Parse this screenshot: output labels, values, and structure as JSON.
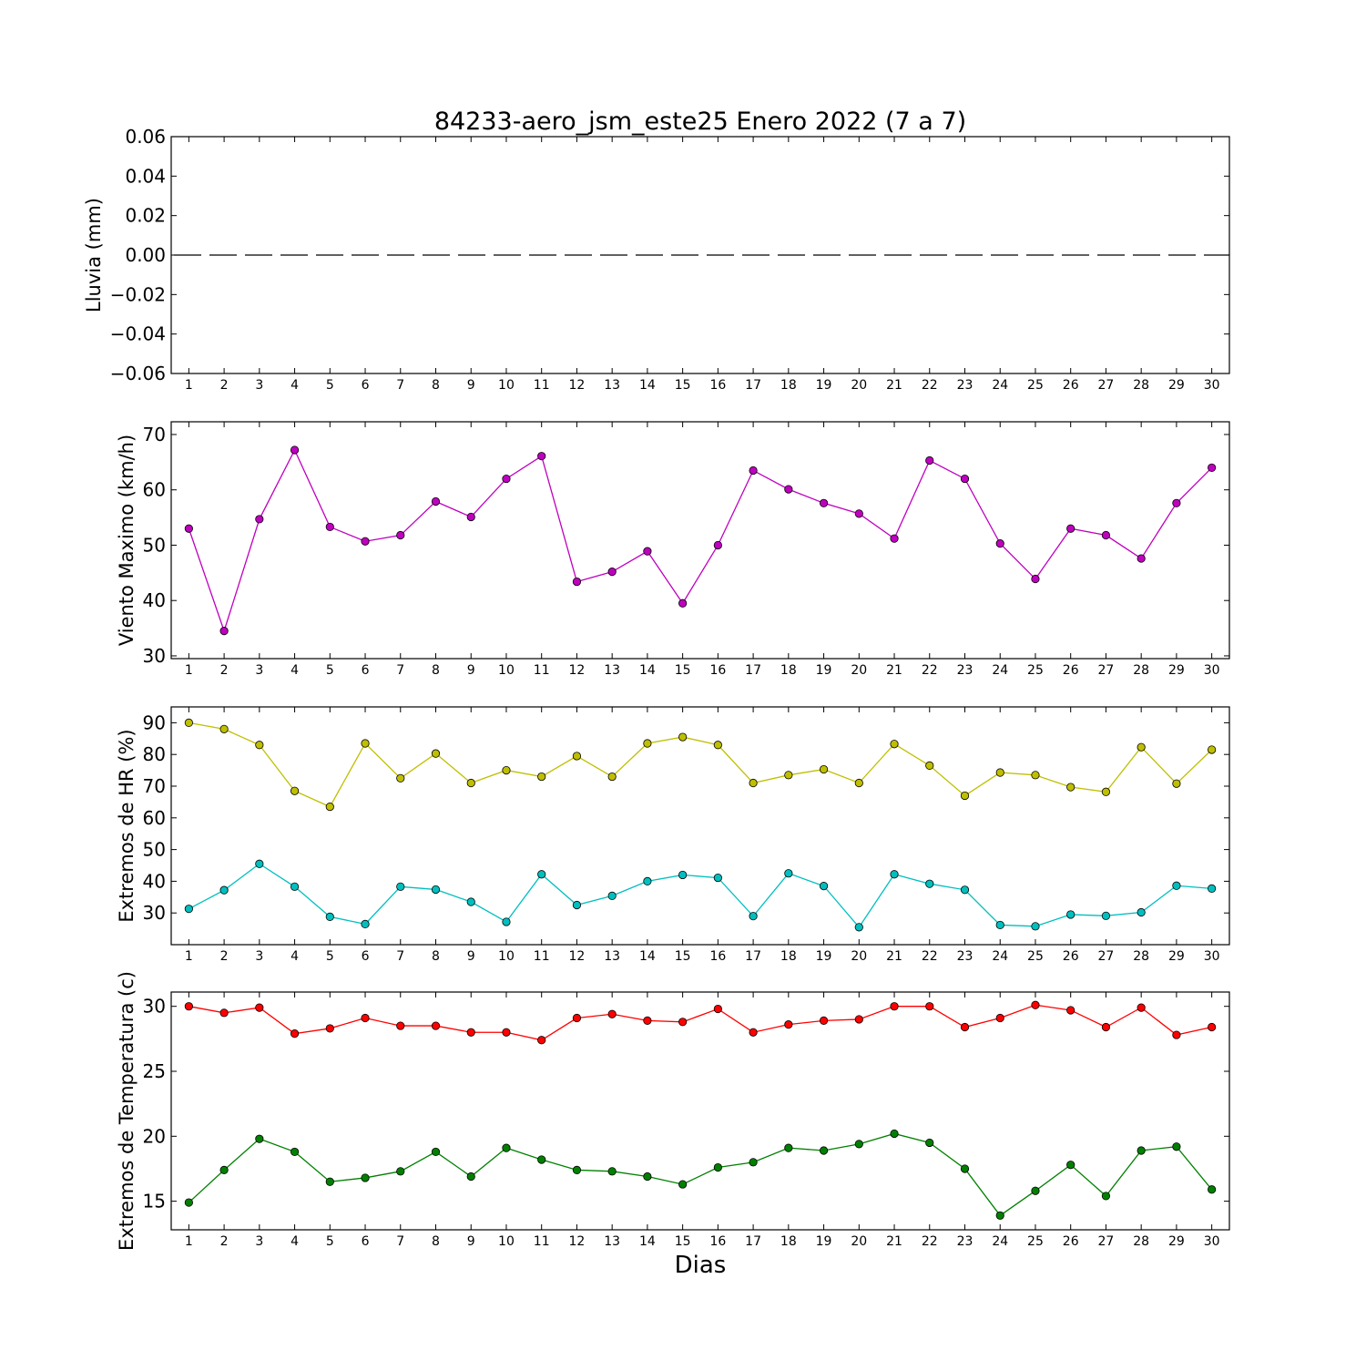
{
  "figure": {
    "title": "84233-aero_jsm_este25 Enero 2022  (7 a 7)",
    "xlabel": "Dias"
  },
  "chart_data": [
    {
      "type": "line",
      "ylabel": "Lluvia (mm)",
      "x": [
        1,
        2,
        3,
        4,
        5,
        6,
        7,
        8,
        9,
        10,
        11,
        12,
        13,
        14,
        15,
        16,
        17,
        18,
        19,
        20,
        21,
        22,
        23,
        24,
        25,
        26,
        27,
        28,
        29,
        30
      ],
      "xlim": [
        0.5,
        30.5
      ],
      "ylim": [
        -0.06,
        0.06
      ],
      "yticks": [
        0.06,
        0.04,
        0.02,
        0.0,
        -0.02,
        -0.04,
        -0.06
      ],
      "ytick_labels": [
        "0.06",
        "0.04",
        "0.02",
        "0.00",
        "−0.02",
        "−0.04",
        "−0.06"
      ],
      "series": [
        {
          "style": "dashed",
          "marker": false,
          "color": "#000000",
          "values": [
            0,
            0,
            0,
            0,
            0,
            0,
            0,
            0,
            0,
            0,
            0,
            0,
            0,
            0,
            0,
            0,
            0,
            0,
            0,
            0,
            0,
            0,
            0,
            0,
            0,
            0,
            0,
            0,
            0,
            0
          ]
        }
      ]
    },
    {
      "type": "line",
      "ylabel": "Viento Maximo (km/h)",
      "x": [
        1,
        2,
        3,
        4,
        5,
        6,
        7,
        8,
        9,
        10,
        11,
        12,
        13,
        14,
        15,
        16,
        17,
        18,
        19,
        20,
        21,
        22,
        23,
        24,
        25,
        26,
        27,
        28,
        29,
        30
      ],
      "xlim": [
        0.5,
        30.5
      ],
      "ylim": [
        29.5,
        72.3
      ],
      "yticks": [
        70,
        60,
        50,
        40,
        30
      ],
      "ytick_labels": [
        "70",
        "60",
        "50",
        "40",
        "30"
      ],
      "series": [
        {
          "style": "solid",
          "marker": true,
          "color": "#bf00bf",
          "values": [
            53.0,
            34.5,
            54.7,
            67.2,
            53.3,
            50.7,
            51.8,
            57.9,
            55.1,
            62.0,
            66.1,
            43.4,
            45.2,
            48.9,
            39.5,
            50.0,
            63.5,
            60.1,
            57.6,
            55.7,
            51.2,
            65.3,
            62.0,
            50.3,
            43.9,
            53.0,
            51.8,
            47.6,
            57.6,
            64.0
          ]
        }
      ]
    },
    {
      "type": "line",
      "ylabel": "Extremos de HR (%)",
      "x": [
        1,
        2,
        3,
        4,
        5,
        6,
        7,
        8,
        9,
        10,
        11,
        12,
        13,
        14,
        15,
        16,
        17,
        18,
        19,
        20,
        21,
        22,
        23,
        24,
        25,
        26,
        27,
        28,
        29,
        30
      ],
      "xlim": [
        0.5,
        30.5
      ],
      "ylim": [
        20,
        95
      ],
      "yticks": [
        90,
        80,
        70,
        60,
        50,
        40,
        30
      ],
      "ytick_labels": [
        "90",
        "80",
        "70",
        "60",
        "50",
        "40",
        "30"
      ],
      "series": [
        {
          "style": "solid",
          "marker": true,
          "color": "#bfbf00",
          "values": [
            90,
            88,
            83,
            68.5,
            63.5,
            83.5,
            72.5,
            80.3,
            71,
            75,
            73,
            79.5,
            73,
            83.5,
            85.5,
            83,
            71,
            73.5,
            75.3,
            71,
            83.3,
            76.5,
            67,
            74.3,
            73.5,
            69.7,
            68.2,
            82.3,
            70.8,
            81.5
          ]
        },
        {
          "style": "solid",
          "marker": true,
          "color": "#00bfbf",
          "values": [
            31.3,
            37.2,
            45.5,
            38.3,
            28.8,
            26.5,
            38.3,
            37.4,
            33.5,
            27.2,
            42.2,
            32.5,
            35.4,
            40,
            42,
            41.1,
            29,
            42.5,
            38.5,
            25.5,
            42.2,
            39.2,
            37.3,
            26.2,
            25.8,
            29.5,
            29.1,
            30.2,
            38.6,
            37.7
          ]
        }
      ]
    },
    {
      "type": "line",
      "ylabel": "Extremos de Temperatura (c)",
      "x": [
        1,
        2,
        3,
        4,
        5,
        6,
        7,
        8,
        9,
        10,
        11,
        12,
        13,
        14,
        15,
        16,
        17,
        18,
        19,
        20,
        21,
        22,
        23,
        24,
        25,
        26,
        27,
        28,
        29,
        30
      ],
      "xlim": [
        0.5,
        30.5
      ],
      "ylim": [
        12.8,
        31.1
      ],
      "yticks": [
        30,
        25,
        20,
        15
      ],
      "ytick_labels": [
        "30",
        "25",
        "20",
        "15"
      ],
      "series": [
        {
          "style": "solid",
          "marker": true,
          "color": "#ff0000",
          "values": [
            30.0,
            29.5,
            29.9,
            27.9,
            28.3,
            29.1,
            28.5,
            28.5,
            28.0,
            28.0,
            27.4,
            29.1,
            29.4,
            28.9,
            28.8,
            29.8,
            28.0,
            28.6,
            28.9,
            29.0,
            30.0,
            30.0,
            28.4,
            29.1,
            30.1,
            29.7,
            28.4,
            29.9,
            27.8,
            28.4
          ]
        },
        {
          "style": "solid",
          "marker": true,
          "color": "#008000",
          "values": [
            14.9,
            17.4,
            19.8,
            18.8,
            16.5,
            16.8,
            17.3,
            18.8,
            16.9,
            19.1,
            18.2,
            17.4,
            17.3,
            16.9,
            16.3,
            17.6,
            18.0,
            19.1,
            18.9,
            19.4,
            20.2,
            19.5,
            17.5,
            13.9,
            15.8,
            17.8,
            15.4,
            18.9,
            19.2,
            15.9
          ]
        }
      ]
    }
  ]
}
